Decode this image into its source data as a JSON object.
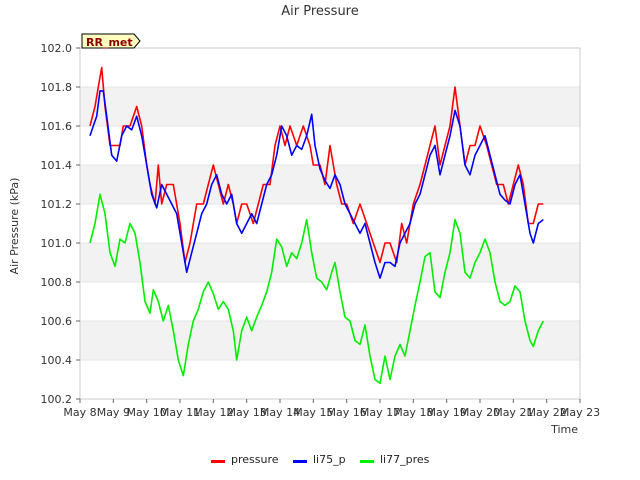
{
  "chart_data": {
    "type": "line",
    "title": "Air Pressure",
    "xlabel": "Time",
    "ylabel": "Air Pressure (kPa)",
    "ylim": [
      100.2,
      102.0
    ],
    "xlim": [
      0,
      15
    ],
    "y_ticks": [
      "100.2",
      "100.4",
      "100.6",
      "100.8",
      "101.0",
      "101.2",
      "101.4",
      "101.6",
      "101.8",
      "102.0"
    ],
    "x_ticks": [
      "May 8",
      "May 9",
      "May 10",
      "May 11",
      "May 12",
      "May 13",
      "May 14",
      "May 15",
      "May 16",
      "May 17",
      "May 18",
      "May 19",
      "May 20",
      "May 21",
      "May 22",
      "May 23"
    ],
    "grid": "horizontal alternating bands",
    "legend_position": "bottom-center",
    "annotation": "RR_met",
    "series": [
      {
        "name": "pressure",
        "color": "#ff0000",
        "points": [
          [
            0.3,
            101.6
          ],
          [
            0.45,
            101.7
          ],
          [
            0.55,
            101.8
          ],
          [
            0.65,
            101.9
          ],
          [
            0.75,
            101.7
          ],
          [
            0.9,
            101.5
          ],
          [
            1.2,
            101.5
          ],
          [
            1.3,
            101.6
          ],
          [
            1.5,
            101.6
          ],
          [
            1.7,
            101.7
          ],
          [
            1.85,
            101.6
          ],
          [
            2.0,
            101.4
          ],
          [
            2.1,
            101.3
          ],
          [
            2.25,
            101.2
          ],
          [
            2.35,
            101.4
          ],
          [
            2.45,
            101.2
          ],
          [
            2.6,
            101.3
          ],
          [
            2.8,
            101.3
          ],
          [
            3.0,
            101.1
          ],
          [
            3.15,
            100.9
          ],
          [
            3.3,
            101.0
          ],
          [
            3.5,
            101.2
          ],
          [
            3.7,
            101.2
          ],
          [
            3.85,
            101.3
          ],
          [
            4.0,
            101.4
          ],
          [
            4.15,
            101.3
          ],
          [
            4.3,
            101.2
          ],
          [
            4.45,
            101.3
          ],
          [
            4.6,
            101.2
          ],
          [
            4.7,
            101.1
          ],
          [
            4.85,
            101.2
          ],
          [
            5.0,
            101.2
          ],
          [
            5.2,
            101.1
          ],
          [
            5.35,
            101.2
          ],
          [
            5.5,
            101.3
          ],
          [
            5.7,
            101.3
          ],
          [
            5.85,
            101.5
          ],
          [
            6.0,
            101.6
          ],
          [
            6.15,
            101.5
          ],
          [
            6.3,
            101.6
          ],
          [
            6.5,
            101.5
          ],
          [
            6.7,
            101.6
          ],
          [
            6.9,
            101.5
          ],
          [
            7.0,
            101.4
          ],
          [
            7.2,
            101.4
          ],
          [
            7.35,
            101.3
          ],
          [
            7.5,
            101.5
          ],
          [
            7.7,
            101.3
          ],
          [
            7.85,
            101.2
          ],
          [
            8.0,
            101.2
          ],
          [
            8.2,
            101.1
          ],
          [
            8.4,
            101.2
          ],
          [
            8.6,
            101.1
          ],
          [
            8.8,
            101.0
          ],
          [
            9.0,
            100.9
          ],
          [
            9.15,
            101.0
          ],
          [
            9.3,
            101.0
          ],
          [
            9.5,
            100.9
          ],
          [
            9.65,
            101.1
          ],
          [
            9.8,
            101.0
          ],
          [
            10.0,
            101.2
          ],
          [
            10.2,
            101.3
          ],
          [
            10.35,
            101.4
          ],
          [
            10.5,
            101.5
          ],
          [
            10.65,
            101.6
          ],
          [
            10.8,
            101.4
          ],
          [
            10.95,
            101.5
          ],
          [
            11.1,
            101.6
          ],
          [
            11.25,
            101.8
          ],
          [
            11.4,
            101.6
          ],
          [
            11.55,
            101.4
          ],
          [
            11.7,
            101.5
          ],
          [
            11.85,
            101.5
          ],
          [
            12.0,
            101.6
          ],
          [
            12.2,
            101.5
          ],
          [
            12.35,
            101.4
          ],
          [
            12.5,
            101.3
          ],
          [
            12.7,
            101.3
          ],
          [
            12.85,
            101.2
          ],
          [
            13.0,
            101.3
          ],
          [
            13.15,
            101.4
          ],
          [
            13.3,
            101.3
          ],
          [
            13.45,
            101.1
          ],
          [
            13.6,
            101.1
          ],
          [
            13.75,
            101.2
          ],
          [
            13.9,
            101.2
          ]
        ]
      },
      {
        "name": "li75_p",
        "color": "#0000ff",
        "points": [
          [
            0.3,
            101.55
          ],
          [
            0.4,
            101.6
          ],
          [
            0.5,
            101.65
          ],
          [
            0.6,
            101.78
          ],
          [
            0.7,
            101.78
          ],
          [
            0.8,
            101.65
          ],
          [
            0.95,
            101.45
          ],
          [
            1.1,
            101.42
          ],
          [
            1.25,
            101.55
          ],
          [
            1.4,
            101.6
          ],
          [
            1.55,
            101.58
          ],
          [
            1.7,
            101.65
          ],
          [
            1.85,
            101.55
          ],
          [
            2.0,
            101.4
          ],
          [
            2.15,
            101.25
          ],
          [
            2.3,
            101.18
          ],
          [
            2.45,
            101.3
          ],
          [
            2.6,
            101.25
          ],
          [
            2.75,
            101.2
          ],
          [
            2.9,
            101.15
          ],
          [
            3.05,
            101.0
          ],
          [
            3.2,
            100.85
          ],
          [
            3.35,
            100.95
          ],
          [
            3.5,
            101.05
          ],
          [
            3.65,
            101.15
          ],
          [
            3.8,
            101.2
          ],
          [
            3.95,
            101.3
          ],
          [
            4.1,
            101.35
          ],
          [
            4.25,
            101.25
          ],
          [
            4.4,
            101.2
          ],
          [
            4.55,
            101.25
          ],
          [
            4.7,
            101.1
          ],
          [
            4.85,
            101.05
          ],
          [
            5.0,
            101.1
          ],
          [
            5.15,
            101.15
          ],
          [
            5.3,
            101.1
          ],
          [
            5.45,
            101.2
          ],
          [
            5.6,
            101.3
          ],
          [
            5.75,
            101.35
          ],
          [
            5.9,
            101.45
          ],
          [
            6.05,
            101.6
          ],
          [
            6.2,
            101.55
          ],
          [
            6.35,
            101.45
          ],
          [
            6.5,
            101.5
          ],
          [
            6.65,
            101.48
          ],
          [
            6.8,
            101.55
          ],
          [
            6.95,
            101.66
          ],
          [
            7.05,
            101.5
          ],
          [
            7.2,
            101.38
          ],
          [
            7.35,
            101.32
          ],
          [
            7.5,
            101.28
          ],
          [
            7.65,
            101.35
          ],
          [
            7.8,
            101.3
          ],
          [
            7.95,
            101.2
          ],
          [
            8.1,
            101.15
          ],
          [
            8.25,
            101.1
          ],
          [
            8.4,
            101.05
          ],
          [
            8.55,
            101.1
          ],
          [
            8.7,
            101.0
          ],
          [
            8.85,
            100.9
          ],
          [
            9.0,
            100.82
          ],
          [
            9.15,
            100.9
          ],
          [
            9.3,
            100.9
          ],
          [
            9.45,
            100.88
          ],
          [
            9.6,
            101.0
          ],
          [
            9.75,
            101.05
          ],
          [
            9.9,
            101.1
          ],
          [
            10.05,
            101.2
          ],
          [
            10.2,
            101.25
          ],
          [
            10.35,
            101.35
          ],
          [
            10.5,
            101.45
          ],
          [
            10.65,
            101.5
          ],
          [
            10.8,
            101.35
          ],
          [
            10.95,
            101.45
          ],
          [
            11.1,
            101.55
          ],
          [
            11.25,
            101.68
          ],
          [
            11.4,
            101.6
          ],
          [
            11.55,
            101.4
          ],
          [
            11.7,
            101.35
          ],
          [
            11.85,
            101.45
          ],
          [
            12.0,
            101.5
          ],
          [
            12.15,
            101.55
          ],
          [
            12.3,
            101.45
          ],
          [
            12.45,
            101.35
          ],
          [
            12.6,
            101.25
          ],
          [
            12.75,
            101.22
          ],
          [
            12.9,
            101.2
          ],
          [
            13.05,
            101.3
          ],
          [
            13.2,
            101.35
          ],
          [
            13.35,
            101.2
          ],
          [
            13.5,
            101.05
          ],
          [
            13.6,
            101.0
          ],
          [
            13.75,
            101.1
          ],
          [
            13.9,
            101.12
          ]
        ]
      },
      {
        "name": "li77_pres",
        "color": "#00ee00",
        "points": [
          [
            0.3,
            101.0
          ],
          [
            0.45,
            101.1
          ],
          [
            0.6,
            101.25
          ],
          [
            0.75,
            101.15
          ],
          [
            0.9,
            100.95
          ],
          [
            1.05,
            100.88
          ],
          [
            1.2,
            101.02
          ],
          [
            1.35,
            101.0
          ],
          [
            1.5,
            101.1
          ],
          [
            1.65,
            101.05
          ],
          [
            1.8,
            100.9
          ],
          [
            1.95,
            100.7
          ],
          [
            2.1,
            100.64
          ],
          [
            2.2,
            100.76
          ],
          [
            2.35,
            100.7
          ],
          [
            2.5,
            100.6
          ],
          [
            2.65,
            100.68
          ],
          [
            2.8,
            100.55
          ],
          [
            2.95,
            100.4
          ],
          [
            3.1,
            100.32
          ],
          [
            3.25,
            100.48
          ],
          [
            3.4,
            100.6
          ],
          [
            3.55,
            100.66
          ],
          [
            3.7,
            100.75
          ],
          [
            3.85,
            100.8
          ],
          [
            4.0,
            100.74
          ],
          [
            4.15,
            100.66
          ],
          [
            4.3,
            100.7
          ],
          [
            4.45,
            100.66
          ],
          [
            4.6,
            100.55
          ],
          [
            4.7,
            100.4
          ],
          [
            4.85,
            100.55
          ],
          [
            5.0,
            100.62
          ],
          [
            5.15,
            100.55
          ],
          [
            5.3,
            100.62
          ],
          [
            5.45,
            100.68
          ],
          [
            5.6,
            100.75
          ],
          [
            5.75,
            100.85
          ],
          [
            5.9,
            101.02
          ],
          [
            6.05,
            100.98
          ],
          [
            6.2,
            100.88
          ],
          [
            6.35,
            100.95
          ],
          [
            6.5,
            100.92
          ],
          [
            6.65,
            101.0
          ],
          [
            6.8,
            101.12
          ],
          [
            6.95,
            100.95
          ],
          [
            7.1,
            100.82
          ],
          [
            7.25,
            100.8
          ],
          [
            7.4,
            100.76
          ],
          [
            7.55,
            100.85
          ],
          [
            7.65,
            100.9
          ],
          [
            7.8,
            100.75
          ],
          [
            7.95,
            100.62
          ],
          [
            8.1,
            100.6
          ],
          [
            8.25,
            100.5
          ],
          [
            8.4,
            100.48
          ],
          [
            8.55,
            100.58
          ],
          [
            8.7,
            100.42
          ],
          [
            8.85,
            100.3
          ],
          [
            9.0,
            100.28
          ],
          [
            9.15,
            100.42
          ],
          [
            9.3,
            100.3
          ],
          [
            9.45,
            100.42
          ],
          [
            9.6,
            100.48
          ],
          [
            9.75,
            100.42
          ],
          [
            9.9,
            100.55
          ],
          [
            10.05,
            100.68
          ],
          [
            10.2,
            100.8
          ],
          [
            10.35,
            100.93
          ],
          [
            10.5,
            100.95
          ],
          [
            10.65,
            100.75
          ],
          [
            10.8,
            100.72
          ],
          [
            10.95,
            100.85
          ],
          [
            11.1,
            100.95
          ],
          [
            11.25,
            101.12
          ],
          [
            11.4,
            101.05
          ],
          [
            11.55,
            100.85
          ],
          [
            11.7,
            100.82
          ],
          [
            11.85,
            100.9
          ],
          [
            12.0,
            100.95
          ],
          [
            12.15,
            101.02
          ],
          [
            12.3,
            100.95
          ],
          [
            12.45,
            100.8
          ],
          [
            12.6,
            100.7
          ],
          [
            12.75,
            100.68
          ],
          [
            12.9,
            100.7
          ],
          [
            13.05,
            100.78
          ],
          [
            13.2,
            100.75
          ],
          [
            13.35,
            100.6
          ],
          [
            13.5,
            100.5
          ],
          [
            13.6,
            100.47
          ],
          [
            13.75,
            100.55
          ],
          [
            13.9,
            100.6
          ]
        ]
      }
    ]
  }
}
